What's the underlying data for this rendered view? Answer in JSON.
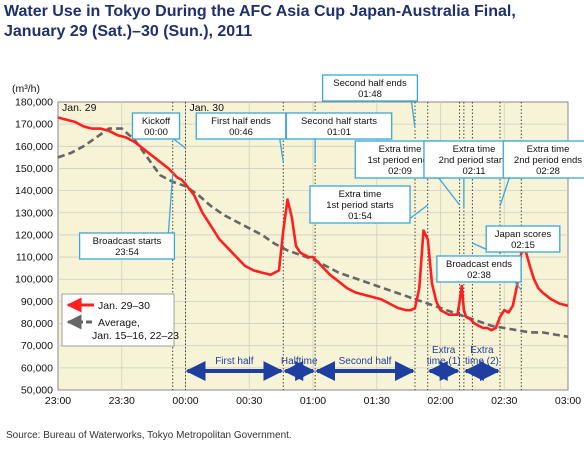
{
  "title_line1": "Water Use in Tokyo During the AFC Asia Cup Japan-Australia Final,",
  "title_line2": "January 29 (Sat.)–30 (Sun.), 2011",
  "source": "Source: Bureau of Waterworks, Tokyo Metropolitan Government.",
  "colors": {
    "jan_series": "#ff1f1f",
    "avg_series": "#666666",
    "annotation_border": "#3aa7dd",
    "phase_arrow": "#1f3fa0",
    "plot_bg": "#f6f3d6"
  },
  "chart_data": {
    "type": "line",
    "ylabel": "(m³/h)",
    "ylim": [
      50000,
      180000
    ],
    "yticks": [
      180000,
      170000,
      160000,
      150000,
      140000,
      130000,
      120000,
      110000,
      100000,
      90000,
      80000,
      70000,
      60000,
      50000
    ],
    "ytick_labels": [
      "180,000",
      "170,000",
      "160,000",
      "150,000",
      "140,000",
      "130,000",
      "120,000",
      "110,000",
      "100,000",
      "90,000",
      "80,000",
      "70,000",
      "60,000",
      "50,000"
    ],
    "xlim": [
      "23:00",
      "03:00"
    ],
    "xtick_labels": [
      "23:00",
      "23:30",
      "00:00",
      "00:30",
      "01:00",
      "01:30",
      "02:00",
      "02:30",
      "03:00"
    ],
    "date_labels": [
      {
        "time": "23:00",
        "text": "Jan. 29"
      },
      {
        "time": "00:00",
        "text": "Jan. 30"
      }
    ],
    "grid": true,
    "legend_position": "bottom-left",
    "series": [
      {
        "name": "Jan. 29–30",
        "x": [
          "23:00",
          "23:04",
          "23:08",
          "23:12",
          "23:16",
          "23:20",
          "23:24",
          "23:28",
          "23:32",
          "23:36",
          "23:40",
          "23:44",
          "23:48",
          "23:52",
          "23:54",
          "23:56",
          "23:58",
          "00:00",
          "00:04",
          "00:08",
          "00:12",
          "00:16",
          "00:20",
          "00:24",
          "00:28",
          "00:32",
          "00:36",
          "00:40",
          "00:44",
          "00:46",
          "00:48",
          "00:50",
          "00:52",
          "00:54",
          "00:56",
          "00:58",
          "01:00",
          "01:04",
          "01:08",
          "01:12",
          "01:16",
          "01:20",
          "01:24",
          "01:28",
          "01:32",
          "01:36",
          "01:40",
          "01:44",
          "01:46",
          "01:48",
          "01:50",
          "01:52",
          "01:54",
          "01:56",
          "01:58",
          "02:00",
          "02:02",
          "02:04",
          "02:06",
          "02:08",
          "02:09",
          "02:10",
          "02:11",
          "02:12",
          "02:14",
          "02:16",
          "02:18",
          "02:20",
          "02:22",
          "02:24",
          "02:26",
          "02:28",
          "02:30",
          "02:32",
          "02:34",
          "02:36",
          "02:38",
          "02:40",
          "02:42",
          "02:44",
          "02:46",
          "02:48",
          "02:52",
          "02:56",
          "03:00"
        ],
        "values": [
          173000,
          172000,
          171000,
          169000,
          168000,
          168000,
          167000,
          165000,
          164000,
          162000,
          159000,
          156000,
          153000,
          150000,
          148000,
          146000,
          145000,
          143000,
          138000,
          130000,
          124000,
          118000,
          114000,
          110000,
          106000,
          104000,
          103000,
          102000,
          104000,
          122000,
          136000,
          128000,
          115000,
          112000,
          111000,
          110000,
          110000,
          106000,
          102000,
          99000,
          96000,
          94000,
          93000,
          92000,
          91000,
          89000,
          87000,
          86000,
          86000,
          87000,
          96000,
          122000,
          118000,
          98000,
          90000,
          86000,
          85000,
          84000,
          84000,
          84000,
          90000,
          97000,
          86000,
          83000,
          82000,
          80000,
          79000,
          78000,
          78000,
          77000,
          78000,
          83000,
          86000,
          85000,
          88000,
          97000,
          112000,
          113000,
          106000,
          100000,
          96000,
          94000,
          91000,
          89000,
          88000
        ]
      },
      {
        "name": "Average,\nJan. 15–16, 22–23",
        "x": [
          "23:00",
          "23:06",
          "23:12",
          "23:18",
          "23:24",
          "23:30",
          "23:36",
          "23:42",
          "23:48",
          "23:54",
          "00:00",
          "00:06",
          "00:12",
          "00:18",
          "00:24",
          "00:30",
          "00:36",
          "00:42",
          "00:48",
          "00:54",
          "01:00",
          "01:06",
          "01:12",
          "01:18",
          "01:24",
          "01:30",
          "01:36",
          "01:42",
          "01:48",
          "01:54",
          "02:00",
          "02:06",
          "02:12",
          "02:18",
          "02:24",
          "02:30",
          "02:36",
          "02:42",
          "02:48",
          "02:54",
          "03:00"
        ],
        "values": [
          155000,
          157000,
          160000,
          164000,
          168000,
          168000,
          163000,
          155000,
          147000,
          144000,
          142000,
          138000,
          133000,
          129000,
          126000,
          123000,
          120000,
          116000,
          113000,
          111000,
          109000,
          106000,
          103000,
          101000,
          99000,
          97000,
          95000,
          93000,
          91000,
          89000,
          87000,
          85000,
          83000,
          81000,
          79000,
          78000,
          77000,
          76000,
          76000,
          75000,
          74000
        ]
      }
    ],
    "event_lines": [
      "23:54",
      "00:00",
      "00:46",
      "01:01",
      "01:48",
      "01:54",
      "02:09",
      "02:11",
      "02:15",
      "02:28",
      "02:38"
    ],
    "annotations": [
      {
        "label": "Kickoff",
        "time": "00:00"
      },
      {
        "label": "First half ends",
        "time": "00:46"
      },
      {
        "label": "Second half starts",
        "time": "01:01"
      },
      {
        "label": "Second half ends",
        "time": "01:48"
      },
      {
        "label": "Extra time 1st period ends",
        "time": "02:09"
      },
      {
        "label": "Extra time 2nd period starts",
        "time": "02:11"
      },
      {
        "label": "Extra time 2nd period ends",
        "time": "02:28"
      },
      {
        "label": "Extra time 1st period starts",
        "time": "01:54"
      },
      {
        "label": "Japan scores",
        "time": "02:15"
      },
      {
        "label": "Broadcast ends",
        "time": "02:38"
      },
      {
        "label": "Broadcast starts",
        "time": "23:54"
      }
    ],
    "phases": [
      {
        "label": "First half",
        "start": "00:00",
        "end": "00:46"
      },
      {
        "label": "Halftime",
        "start": "00:46",
        "end": "01:01"
      },
      {
        "label": "Second half",
        "start": "01:01",
        "end": "01:48"
      },
      {
        "label": "Extra\ntime (1)",
        "start": "01:54",
        "end": "02:09"
      },
      {
        "label": "Extra\ntime (2)",
        "start": "02:11",
        "end": "02:28"
      }
    ]
  }
}
